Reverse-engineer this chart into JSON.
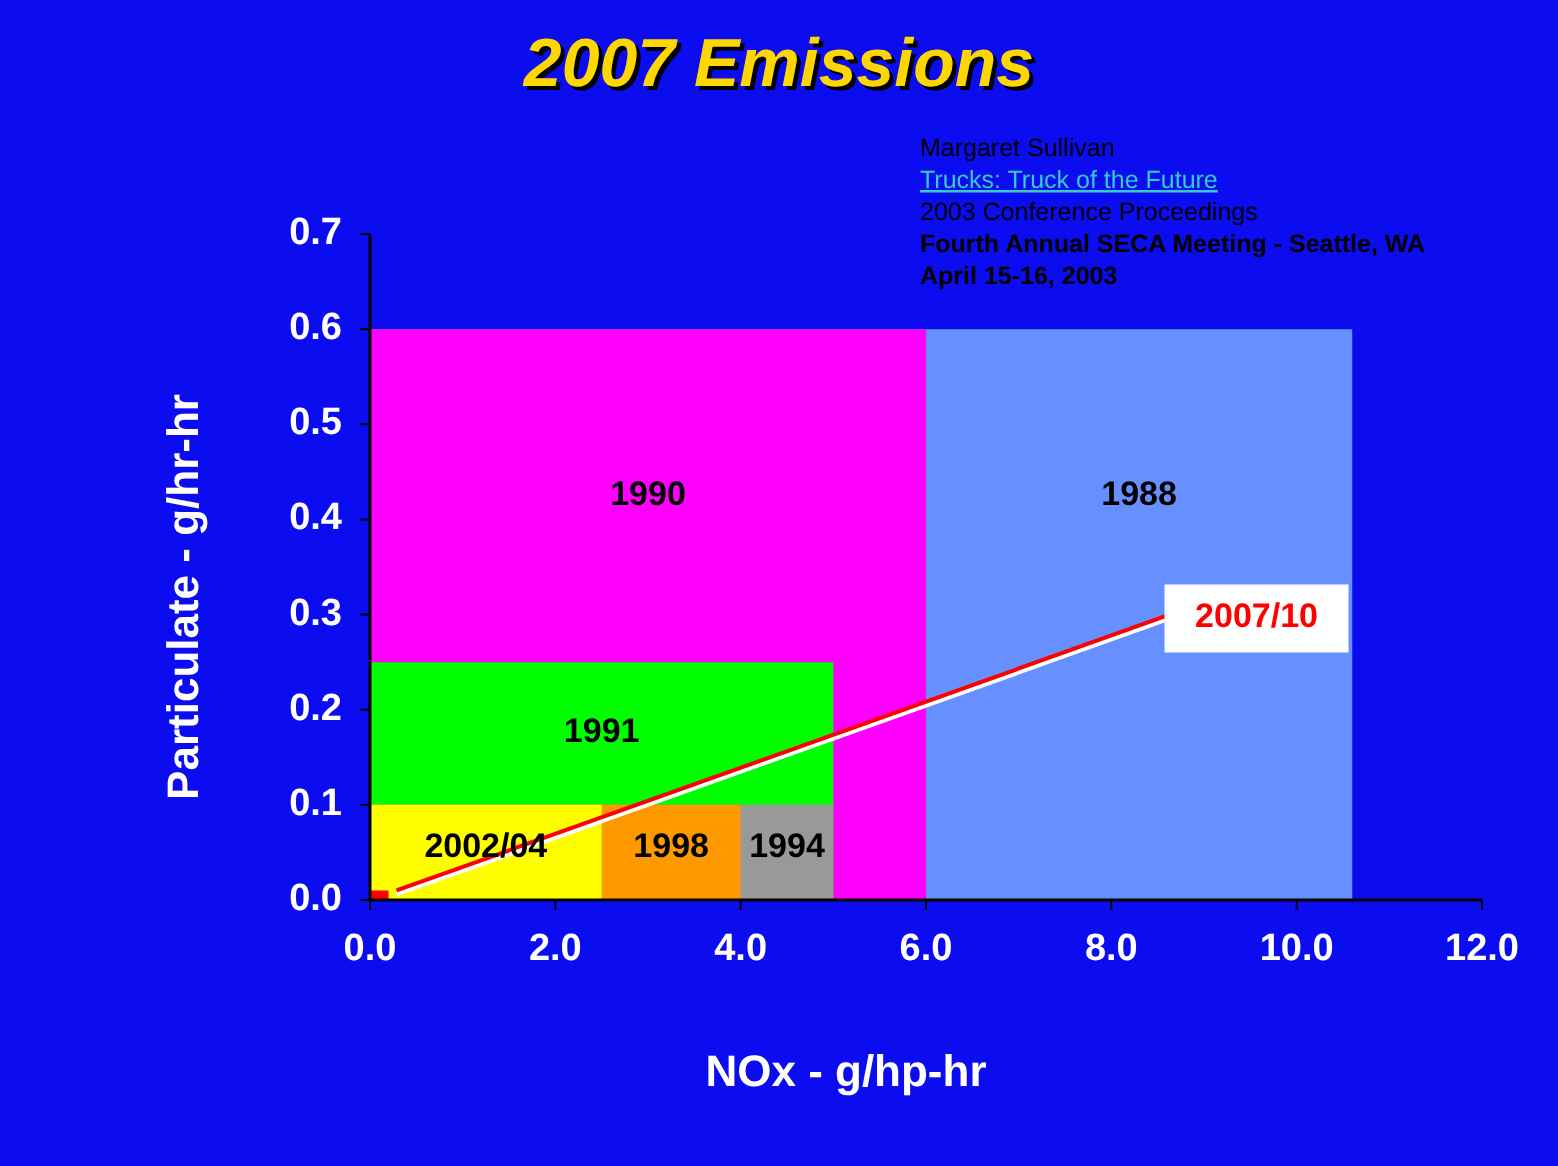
{
  "chart_data": {
    "type": "area",
    "title": "2007 Emissions",
    "xlabel": "NOx - g/hp-hr",
    "ylabel": "Particulate - g/hr-hr",
    "xlim": [
      0,
      12
    ],
    "xticks": [
      {
        "value": 0,
        "label": "0.0"
      },
      {
        "value": 2,
        "label": "2.0"
      },
      {
        "value": 4,
        "label": "4.0"
      },
      {
        "value": 6,
        "label": "6.0"
      },
      {
        "value": 8,
        "label": "8.0"
      },
      {
        "value": 10,
        "label": "10.0"
      },
      {
        "value": 12,
        "label": "12.0"
      }
    ],
    "ylim": [
      0,
      0.7
    ],
    "yticks": [
      {
        "value": 0,
        "label": "0.0"
      },
      0.1,
      0.2,
      0.3,
      0.4,
      0.5,
      0.6,
      0.7
    ],
    "grid": false,
    "series": [
      {
        "name": "1988",
        "color": "#6690ff",
        "x": [
          0,
          10.6
        ],
        "values": [
          0.6,
          0.6
        ]
      },
      {
        "name": "1990",
        "color": "#ff00ff",
        "x": [
          0,
          6
        ],
        "values": [
          0.6,
          0.6
        ]
      },
      {
        "name": "1991",
        "color": "#00ff00",
        "x": [
          0,
          5
        ],
        "values": [
          0.25,
          0.25
        ]
      },
      {
        "name": "1994",
        "color": "#999999",
        "x": [
          0,
          5
        ],
        "values": [
          0.1,
          0.1
        ]
      },
      {
        "name": "1998",
        "color": "#ff9900",
        "x": [
          0,
          4
        ],
        "values": [
          0.1,
          0.1
        ]
      },
      {
        "name": "2002/04",
        "color": "#ffff00",
        "x": [
          0,
          2.5
        ],
        "values": [
          0.1,
          0.1
        ]
      },
      {
        "color": "#ff0000",
        "x": [
          0,
          0.2
        ],
        "values": [
          0.01,
          0.01
        ]
      }
    ],
    "annotations": [
      {
        "text": "2007/10",
        "x": 0.2,
        "y": 0.01
      },
      "Margaret Sullivan",
      "Trucks: Truck of the Future",
      "2003 Conference Proceedings",
      "Fourth Annual SECA Meeting - Seattle, WA",
      "April 15-16, 2003"
    ]
  }
}
